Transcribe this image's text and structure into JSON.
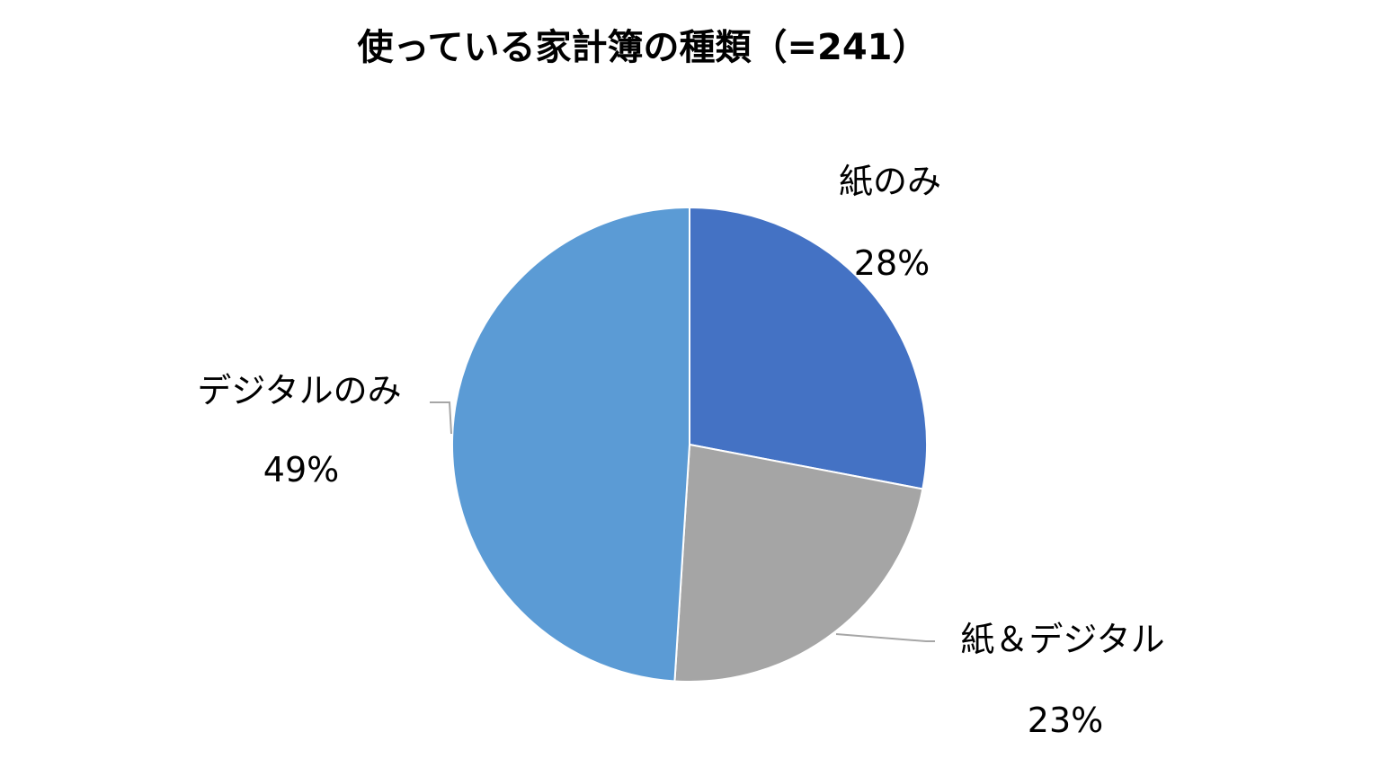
{
  "chart_data": {
    "type": "pie",
    "title": "使っている家計簿の種類（=241）",
    "start_angle_deg": 0,
    "direction": "clockwise",
    "legend": "none",
    "slices": [
      {
        "label": "紙のみ",
        "value": 28,
        "value_label": "28%",
        "color": "#4472c4"
      },
      {
        "label": "紙＆デジタル",
        "value": 23,
        "value_label": "23%",
        "color": "#a5a5a5"
      },
      {
        "label": "デジタルのみ",
        "value": 49,
        "value_label": "49%",
        "color": "#5b9bd5"
      }
    ]
  }
}
